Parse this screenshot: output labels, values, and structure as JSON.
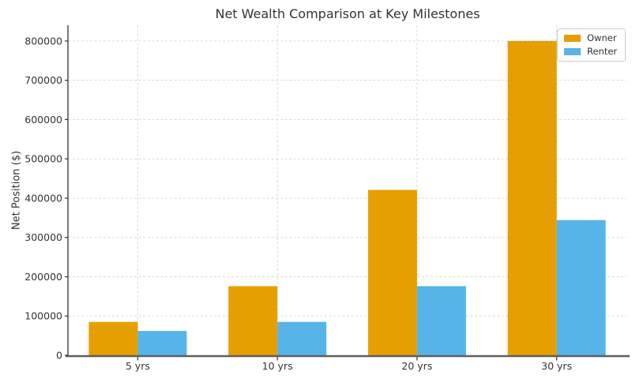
{
  "figure": {
    "title": "Net Wealth Comparison at Key Milestones",
    "ylabel": "Net Position ($)"
  },
  "chart_data": {
    "type": "bar",
    "title": "Net Wealth Comparison at Key Milestones",
    "xlabel": "",
    "ylabel": "Net Position ($)",
    "categories": [
      "5 yrs",
      "10 yrs",
      "20 yrs",
      "30 yrs"
    ],
    "series": [
      {
        "name": "Owner",
        "color": "#E69F00",
        "values": [
          85000,
          176000,
          421000,
          800000
        ]
      },
      {
        "name": "Renter",
        "color": "#56B4E9",
        "values": [
          62000,
          85000,
          176000,
          344000
        ]
      }
    ],
    "yticks": [
      0,
      100000,
      200000,
      300000,
      400000,
      500000,
      600000,
      700000,
      800000
    ],
    "ylim": [
      0,
      840000
    ],
    "grid": true,
    "grid_style": "dashed",
    "legend_position": "upper right"
  },
  "colors": {
    "owner": "#E69F00",
    "renter": "#56B4E9",
    "background": "#ffffff",
    "grid": "#d9d9d9",
    "text": "#333333",
    "axis_spine": "#333333",
    "baseline": "#5e5e5e",
    "legend_border": "#cccccc"
  }
}
